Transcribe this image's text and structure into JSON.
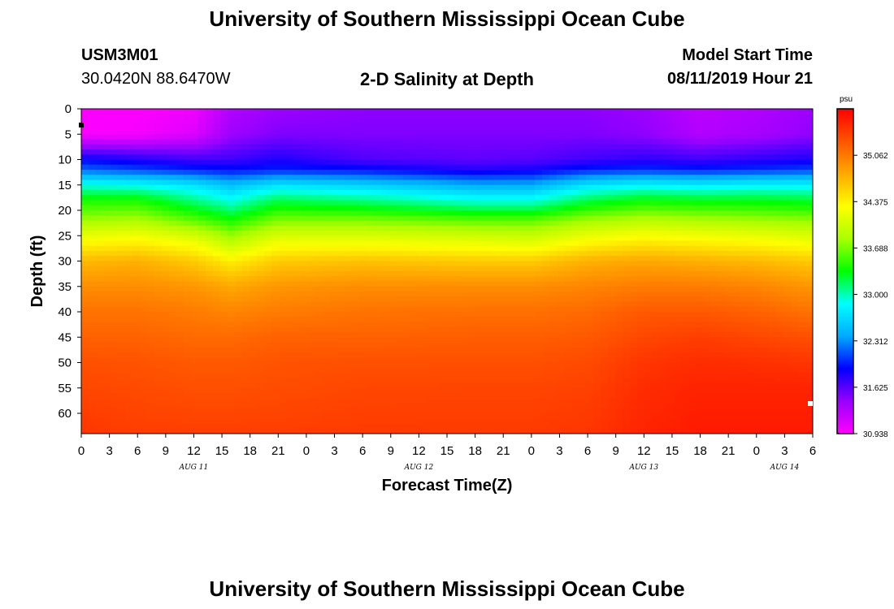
{
  "page": {
    "title_top": "University of Southern Mississippi Ocean Cube",
    "title_bottom": "University of Southern Mississippi Ocean Cube",
    "station_id": "USM3M01",
    "location": "30.0420N 88.6470W",
    "plot_title": "2-D Salinity at Depth",
    "model_start_label": "Model Start Time",
    "model_start_value": "08/11/2019 Hour 21"
  },
  "chart_data": {
    "type": "heatmap",
    "title": "2-D Salinity at Depth",
    "xlabel": "Forecast Time(Z)",
    "ylabel": "Depth (ft)",
    "x_unit": "hour (Z)",
    "x_range": [
      0,
      78
    ],
    "ylim": [
      0,
      64
    ],
    "y_inverted": true,
    "x_tick_labels": [
      "0",
      "3",
      "6",
      "9",
      "12",
      "15",
      "18",
      "21",
      "0",
      "3",
      "6",
      "9",
      "12",
      "15",
      "18",
      "21",
      "0",
      "3",
      "6",
      "9",
      "12",
      "15",
      "18",
      "21",
      "0",
      "3",
      "6"
    ],
    "x_date_labels": [
      {
        "label": "AUG 11",
        "hour": 12
      },
      {
        "label": "AUG 12",
        "hour": 36
      },
      {
        "label": "AUG 13",
        "hour": 60
      },
      {
        "label": "AUG 14",
        "hour": 75
      }
    ],
    "y_ticks": [
      0,
      5,
      10,
      15,
      20,
      25,
      30,
      35,
      40,
      45,
      50,
      55,
      60
    ],
    "colorbar": {
      "unit": "psu",
      "min": 30.938,
      "max": 35.75,
      "tick_values": [
        "35.062",
        "34.375",
        "33.688",
        "33.000",
        "32.312",
        "31.625",
        "30.938"
      ],
      "colormap": [
        "#ff00ff",
        "#9900ff",
        "#0000ff",
        "#00aaff",
        "#00ffff",
        "#00ff00",
        "#aaff00",
        "#ffff00",
        "#ffaa00",
        "#ff5500",
        "#ff0000"
      ]
    },
    "profile_depths_ft": [
      0,
      5,
      10,
      12,
      15,
      18,
      22,
      26,
      30,
      35,
      40,
      45,
      50,
      55,
      64
    ],
    "profiles": [
      {
        "hour": 0,
        "values": [
          30.95,
          30.95,
          31.9,
          32.2,
          32.9,
          33.4,
          33.8,
          34.3,
          34.7,
          34.95,
          35.1,
          35.2,
          35.3,
          35.35,
          35.45
        ]
      },
      {
        "hour": 6,
        "values": [
          30.95,
          30.98,
          31.8,
          32.1,
          32.85,
          33.4,
          33.85,
          34.35,
          34.75,
          34.95,
          35.1,
          35.2,
          35.28,
          35.33,
          35.4
        ]
      },
      {
        "hour": 12,
        "values": [
          31.0,
          31.1,
          31.7,
          32.0,
          32.7,
          33.1,
          33.6,
          34.2,
          34.6,
          34.9,
          35.05,
          35.15,
          35.25,
          35.3,
          35.4
        ]
      },
      {
        "hour": 16,
        "values": [
          31.3,
          31.4,
          31.7,
          31.95,
          32.5,
          32.9,
          33.4,
          33.9,
          34.4,
          34.8,
          35.0,
          35.15,
          35.25,
          35.3,
          35.4
        ]
      },
      {
        "hour": 21,
        "values": [
          31.4,
          31.5,
          31.8,
          32.0,
          32.7,
          33.2,
          33.7,
          34.2,
          34.6,
          34.9,
          35.05,
          35.2,
          35.28,
          35.32,
          35.4
        ]
      },
      {
        "hour": 30,
        "values": [
          31.45,
          31.5,
          31.65,
          31.95,
          32.6,
          33.1,
          33.7,
          34.2,
          34.65,
          34.95,
          35.1,
          35.2,
          35.3,
          35.35,
          35.42
        ]
      },
      {
        "hour": 42,
        "values": [
          31.45,
          31.5,
          31.6,
          31.8,
          32.4,
          32.9,
          33.6,
          34.15,
          34.6,
          34.95,
          35.12,
          35.22,
          35.3,
          35.36,
          35.42
        ]
      },
      {
        "hour": 48,
        "values": [
          31.45,
          31.5,
          31.62,
          31.85,
          32.4,
          32.9,
          33.6,
          34.1,
          34.6,
          34.95,
          35.12,
          35.22,
          35.3,
          35.36,
          35.42
        ]
      },
      {
        "hour": 54,
        "values": [
          31.45,
          31.5,
          31.7,
          32.0,
          32.7,
          33.2,
          33.8,
          34.3,
          34.75,
          35.0,
          35.15,
          35.25,
          35.33,
          35.38,
          35.45
        ]
      },
      {
        "hour": 60,
        "values": [
          31.4,
          31.45,
          31.75,
          32.05,
          32.8,
          33.35,
          33.9,
          34.4,
          34.8,
          35.05,
          35.25,
          35.35,
          35.45,
          35.5,
          35.55
        ]
      },
      {
        "hour": 66,
        "values": [
          31.25,
          31.3,
          31.7,
          32.0,
          32.75,
          33.3,
          33.85,
          34.35,
          34.75,
          35.05,
          35.25,
          35.4,
          35.5,
          35.55,
          35.6
        ]
      },
      {
        "hour": 72,
        "values": [
          31.3,
          31.35,
          31.75,
          32.05,
          32.8,
          33.3,
          33.8,
          34.3,
          34.7,
          35.0,
          35.2,
          35.35,
          35.48,
          35.55,
          35.6
        ]
      },
      {
        "hour": 78,
        "values": [
          31.4,
          31.45,
          31.8,
          32.1,
          32.8,
          33.25,
          33.75,
          34.2,
          34.6,
          34.9,
          35.1,
          35.3,
          35.45,
          35.55,
          35.6
        ]
      }
    ]
  }
}
